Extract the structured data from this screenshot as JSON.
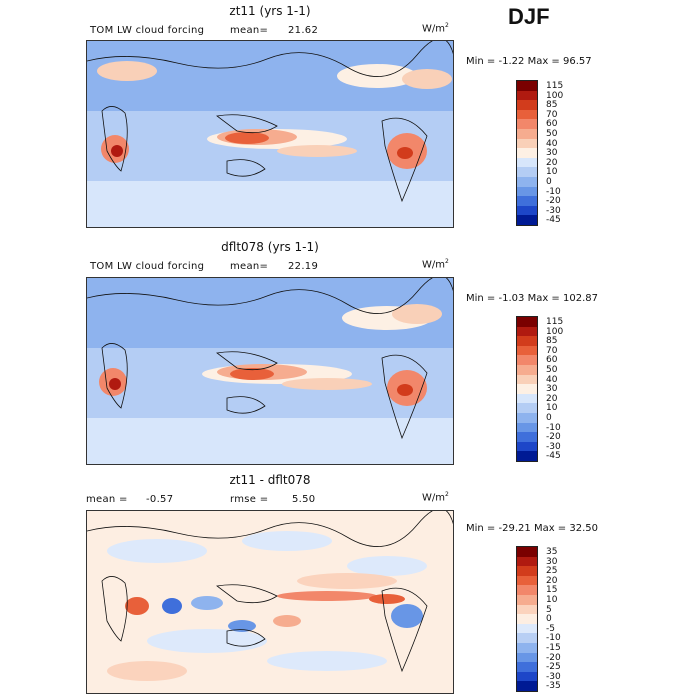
{
  "season": "DJF",
  "panels": [
    {
      "title": "zt11 (yrs 1-1)",
      "left_label": "TOM LW cloud forcing",
      "stat_label": "mean=",
      "stat_value": "21.62",
      "units": "W/m",
      "units_sup": "2",
      "min_label": "Min =",
      "min_value": "-1.22",
      "max_label": "Max =",
      "max_value": "96.57",
      "colorbar_labels": [
        "115",
        "100",
        "85",
        "70",
        "60",
        "50",
        "40",
        "30",
        "20",
        "10",
        "0",
        "-10",
        "-20",
        "-30",
        "-45"
      ]
    },
    {
      "title": "dflt078 (yrs 1-1)",
      "left_label": "TOM LW cloud forcing",
      "stat_label": "mean=",
      "stat_value": "22.19",
      "units": "W/m",
      "units_sup": "2",
      "min_label": "Min =",
      "min_value": "-1.03",
      "max_label": "Max =",
      "max_value": "102.87",
      "colorbar_labels": [
        "115",
        "100",
        "85",
        "70",
        "60",
        "50",
        "40",
        "30",
        "20",
        "10",
        "0",
        "-10",
        "-20",
        "-30",
        "-45"
      ]
    },
    {
      "title": "zt11 - dflt078",
      "left_label": "mean =",
      "left_value": "-0.57",
      "stat_label": "rmse =",
      "stat_value": "5.50",
      "units": "W/m",
      "units_sup": "2",
      "min_label": "Min =",
      "min_value": "-29.21",
      "max_label": "Max =",
      "max_value": "32.50",
      "colorbar_labels": [
        "35",
        "30",
        "25",
        "20",
        "15",
        "10",
        "5",
        "0",
        "-5",
        "-10",
        "-15",
        "-20",
        "-25",
        "-30",
        "-35"
      ]
    }
  ],
  "colors": {
    "abs_scale": [
      "#7a0000",
      "#b01a10",
      "#d23c1c",
      "#e8603a",
      "#f2876a",
      "#f6ac8f",
      "#f9d0b8",
      "#fdf0e4",
      "#d7e6fb",
      "#b4cdf4",
      "#8eb3ee",
      "#6896e6",
      "#3f6fdb",
      "#1d46c8",
      "#001a94"
    ],
    "diff_scale": [
      "#7a0000",
      "#b01a10",
      "#d23c1c",
      "#e8603a",
      "#f2876a",
      "#f6ac8f",
      "#fbd3bd",
      "#fdeee2",
      "#dde9fb",
      "#b8cff4",
      "#8eb3ee",
      "#6896e6",
      "#3f6fdb",
      "#1d46c8",
      "#001a94"
    ]
  }
}
